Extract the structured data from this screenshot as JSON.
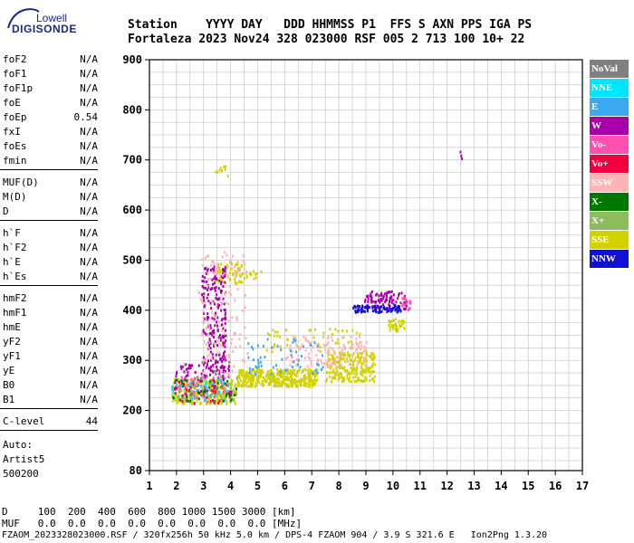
{
  "logo": {
    "line1": "Lowell",
    "line2": "DIGISONDE"
  },
  "header": {
    "row1": "Station    YYYY DAY   DDD HHMMSS P1  FFS S AXN PPS IGA PS",
    "row2": "Fortaleza 2023 Nov24 328 023000 RSF 005 2 713 100 10+ 22"
  },
  "params": [
    {
      "group": [
        {
          "name": "foF2",
          "value": "N/A"
        },
        {
          "name": "foF1",
          "value": "N/A"
        },
        {
          "name": "foF1p",
          "value": "N/A"
        },
        {
          "name": "foE",
          "value": "N/A"
        },
        {
          "name": "foEp",
          "value": "0.54"
        },
        {
          "name": "fxI",
          "value": "N/A"
        },
        {
          "name": "foEs",
          "value": "N/A"
        },
        {
          "name": "fmin",
          "value": "N/A"
        }
      ]
    },
    {
      "group": [
        {
          "name": "MUF(D)",
          "value": "N/A"
        },
        {
          "name": "M(D)",
          "value": "N/A"
        },
        {
          "name": "D",
          "value": "N/A"
        }
      ]
    },
    {
      "group": [
        {
          "name": "h`F",
          "value": "N/A"
        },
        {
          "name": "h`F2",
          "value": "N/A"
        },
        {
          "name": "h`E",
          "value": "N/A"
        },
        {
          "name": "h`Es",
          "value": "N/A"
        }
      ]
    },
    {
      "group": [
        {
          "name": "hmF2",
          "value": "N/A"
        },
        {
          "name": "hmF1",
          "value": "N/A"
        },
        {
          "name": "hmE",
          "value": "N/A"
        },
        {
          "name": "yF2",
          "value": "N/A"
        },
        {
          "name": "yF1",
          "value": "N/A"
        },
        {
          "name": "yE",
          "value": "N/A"
        },
        {
          "name": "B0",
          "value": "N/A"
        },
        {
          "name": "B1",
          "value": "N/A"
        }
      ]
    },
    {
      "group": [
        {
          "name": "C-level",
          "value": "44"
        }
      ]
    }
  ],
  "auto": {
    "line1": "Auto:",
    "line2": "Artist5",
    "line3": "500200"
  },
  "legend": [
    {
      "label": "NoVal",
      "color": "#808080"
    },
    {
      "label": "NNE",
      "color": "#00e5ff"
    },
    {
      "label": "E",
      "color": "#3ba8f0"
    },
    {
      "label": "W",
      "color": "#a800a8"
    },
    {
      "label": "Vo-",
      "color": "#ff4fb0"
    },
    {
      "label": "Vo+",
      "color": "#f00040"
    },
    {
      "label": "SSW",
      "color": "#ffb4b4"
    },
    {
      "label": "X-",
      "color": "#007800"
    },
    {
      "label": "X+",
      "color": "#8cbc5c"
    },
    {
      "label": "SSE",
      "color": "#d2d200"
    },
    {
      "label": "NNW",
      "color": "#1010d8"
    }
  ],
  "footer": {
    "line1": "D     100  200  400  600  800 1000 1500 3000 [km]",
    "line2": "MUF   0.0  0.0  0.0  0.0  0.0  0.0  0.0  0.0 [MHz]",
    "line3": "FZAOM_2023328023000.RSF / 320fx256h 50 kHz 5.0 km / DPS-4 FZAOM 904 / 3.9 S 321.6 E   Ion2Png 1.3.20"
  },
  "chart_data": {
    "type": "scatter",
    "xlim": [
      1,
      17
    ],
    "ylim": [
      80,
      900
    ],
    "xticks": [
      1,
      2,
      3,
      4,
      5,
      6,
      7,
      8,
      9,
      10,
      11,
      12,
      13,
      14,
      15,
      16,
      17
    ],
    "yticks": [
      80,
      200,
      300,
      400,
      500,
      600,
      700,
      800,
      900
    ],
    "grid": true,
    "clusters": [
      {
        "color": "#d2d200",
        "x": [
          1.8,
          4.2
        ],
        "y": [
          215,
          265
        ],
        "n": 260
      },
      {
        "color": "#d2d200",
        "x": [
          4.2,
          7.2
        ],
        "y": [
          250,
          285
        ],
        "n": 420
      },
      {
        "color": "#d2d200",
        "x": [
          7.5,
          9.3
        ],
        "y": [
          260,
          320
        ],
        "n": 240
      },
      {
        "color": "#d2d200",
        "x": [
          9.8,
          10.4
        ],
        "y": [
          360,
          385
        ],
        "n": 40
      },
      {
        "color": "#d2d200",
        "x": [
          3.4,
          4.4
        ],
        "y": [
          455,
          500
        ],
        "n": 70
      },
      {
        "color": "#d2d200",
        "x": [
          4.3,
          5.3
        ],
        "y": [
          465,
          480
        ],
        "n": 20
      },
      {
        "color": "#d2d200",
        "x": [
          3.4,
          3.9
        ],
        "y": [
          665,
          690
        ],
        "n": 10
      },
      {
        "color": "#d2d200",
        "x": [
          5.3,
          8.8
        ],
        "y": [
          320,
          365
        ],
        "n": 50
      },
      {
        "color": "#a800a8",
        "x": [
          2.9,
          3.8
        ],
        "y": [
          280,
          490
        ],
        "n": 200
      },
      {
        "color": "#a800a8",
        "x": [
          1.9,
          4.0
        ],
        "y": [
          230,
          295
        ],
        "n": 90
      },
      {
        "color": "#a800a8",
        "x": [
          8.9,
          10.5
        ],
        "y": [
          405,
          440
        ],
        "n": 90
      },
      {
        "color": "#1010d8",
        "x": [
          8.5,
          10.3
        ],
        "y": [
          398,
          412
        ],
        "n": 80
      },
      {
        "color": "#ffb4b4",
        "x": [
          2.8,
          4.6
        ],
        "y": [
          270,
          520
        ],
        "n": 130
      },
      {
        "color": "#ffb4b4",
        "x": [
          6.0,
          9.0
        ],
        "y": [
          290,
          350
        ],
        "n": 120
      },
      {
        "color": "#ff4fb0",
        "x": [
          2.0,
          3.8
        ],
        "y": [
          220,
          270
        ],
        "n": 70
      },
      {
        "color": "#ff4fb0",
        "x": [
          10.3,
          10.7
        ],
        "y": [
          400,
          430
        ],
        "n": 20
      },
      {
        "color": "#3ba8f0",
        "x": [
          4.6,
          7.4
        ],
        "y": [
          275,
          345
        ],
        "n": 55
      },
      {
        "color": "#00e5ff",
        "x": [
          1.8,
          3.9
        ],
        "y": [
          220,
          265
        ],
        "n": 45
      },
      {
        "color": "#007800",
        "x": [
          1.8,
          4.2
        ],
        "y": [
          220,
          265
        ],
        "n": 40
      },
      {
        "color": "#8cbc5c",
        "x": [
          2.0,
          4.2
        ],
        "y": [
          220,
          270
        ],
        "n": 40
      },
      {
        "color": "#f00040",
        "x": [
          1.9,
          3.6
        ],
        "y": [
          215,
          260
        ],
        "n": 25
      },
      {
        "color": "#808080",
        "x": [
          2.2,
          4.0
        ],
        "y": [
          230,
          300
        ],
        "n": 15
      },
      {
        "color": "#a800a8",
        "x": [
          12.45,
          12.55
        ],
        "y": [
          705,
          720
        ],
        "n": 3
      }
    ]
  }
}
